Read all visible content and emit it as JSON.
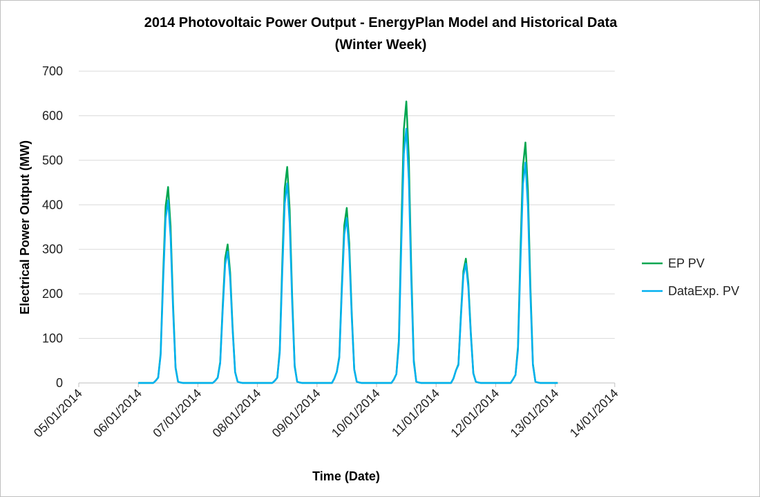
{
  "chart_data": {
    "type": "line",
    "title": "2014 Photovoltaic Power Output - EnergyPlan Model and Historical Data",
    "subtitle": "(Winter Week)",
    "xlabel": "Time (Date)",
    "ylabel": "Electrical Power Output (MW)",
    "ylim": [
      0,
      700
    ],
    "yticks": [
      0,
      100,
      200,
      300,
      400,
      500,
      600,
      700
    ],
    "xticks": [
      "05/01/2014",
      "06/01/2014",
      "07/01/2014",
      "08/01/2014",
      "09/01/2014",
      "10/01/2014",
      "11/01/2014",
      "12/01/2014",
      "13/01/2014",
      "14/01/2014"
    ],
    "x_start": "06/01/2014 00:00",
    "x_resolution": "hourly",
    "grid": "horizontal",
    "legend_position": "right",
    "series": [
      {
        "name": "EP PV",
        "color": "#00a650",
        "days": [
          [
            0,
            0,
            0,
            0,
            0,
            0,
            0,
            5,
            12,
            66,
            242,
            396,
            440,
            352,
            176,
            35,
            3,
            1,
            0,
            0,
            0,
            0,
            0,
            0
          ],
          [
            0,
            0,
            0,
            0,
            0,
            0,
            0,
            5,
            12,
            47,
            171,
            280,
            311,
            249,
            124,
            25,
            3,
            1,
            0,
            0,
            0,
            0,
            0,
            0
          ],
          [
            0,
            0,
            0,
            0,
            0,
            0,
            0,
            5,
            12,
            73,
            267,
            437,
            485,
            388,
            194,
            39,
            3,
            1,
            0,
            0,
            0,
            0,
            0,
            0
          ],
          [
            0,
            0,
            0,
            0,
            0,
            0,
            0,
            10,
            25,
            59,
            216,
            354,
            393,
            314,
            157,
            31,
            3,
            1,
            0,
            0,
            0,
            0,
            0,
            0
          ],
          [
            0,
            0,
            0,
            0,
            0,
            0,
            0,
            8,
            20,
            95,
            348,
            569,
            632,
            506,
            253,
            51,
            3,
            1,
            0,
            0,
            0,
            0,
            0,
            0
          ],
          [
            0,
            0,
            0,
            0,
            0,
            0,
            0,
            10,
            28,
            42,
            153,
            251,
            279,
            223,
            112,
            22,
            3,
            1,
            0,
            0,
            0,
            0,
            0,
            0
          ],
          [
            0,
            0,
            0,
            0,
            0,
            0,
            0,
            8,
            18,
            81,
            297,
            486,
            540,
            432,
            216,
            43,
            3,
            1,
            0,
            0,
            0,
            0,
            0,
            0
          ],
          [
            0,
            0
          ]
        ]
      },
      {
        "name": "DataExp. PV",
        "color": "#00b0f0",
        "days": [
          [
            0,
            0,
            0,
            0,
            0,
            0,
            0,
            5,
            12,
            62,
            226,
            369,
            410,
            328,
            164,
            33,
            3,
            1,
            0,
            0,
            0,
            0,
            0,
            0
          ],
          [
            0,
            0,
            0,
            0,
            0,
            0,
            0,
            5,
            12,
            44,
            162,
            266,
            295,
            236,
            118,
            24,
            3,
            1,
            0,
            0,
            0,
            0,
            0,
            0
          ],
          [
            0,
            0,
            0,
            0,
            0,
            0,
            0,
            5,
            12,
            67,
            246,
            403,
            448,
            358,
            179,
            36,
            3,
            1,
            0,
            0,
            0,
            0,
            0,
            0
          ],
          [
            0,
            0,
            0,
            0,
            0,
            0,
            0,
            10,
            25,
            56,
            204,
            333,
            370,
            296,
            148,
            30,
            3,
            1,
            0,
            0,
            0,
            0,
            0,
            0
          ],
          [
            0,
            0,
            0,
            0,
            0,
            0,
            0,
            8,
            20,
            86,
            314,
            514,
            571,
            457,
            228,
            46,
            3,
            1,
            0,
            0,
            0,
            0,
            0,
            0
          ],
          [
            0,
            0,
            0,
            0,
            0,
            0,
            0,
            10,
            28,
            40,
            147,
            241,
            268,
            214,
            107,
            21,
            3,
            1,
            0,
            0,
            0,
            0,
            0,
            0
          ],
          [
            0,
            0,
            0,
            0,
            0,
            0,
            0,
            8,
            18,
            74,
            272,
            446,
            495,
            396,
            198,
            40,
            3,
            1,
            0,
            0,
            0,
            0,
            0,
            0
          ],
          [
            0,
            0
          ]
        ]
      }
    ]
  }
}
